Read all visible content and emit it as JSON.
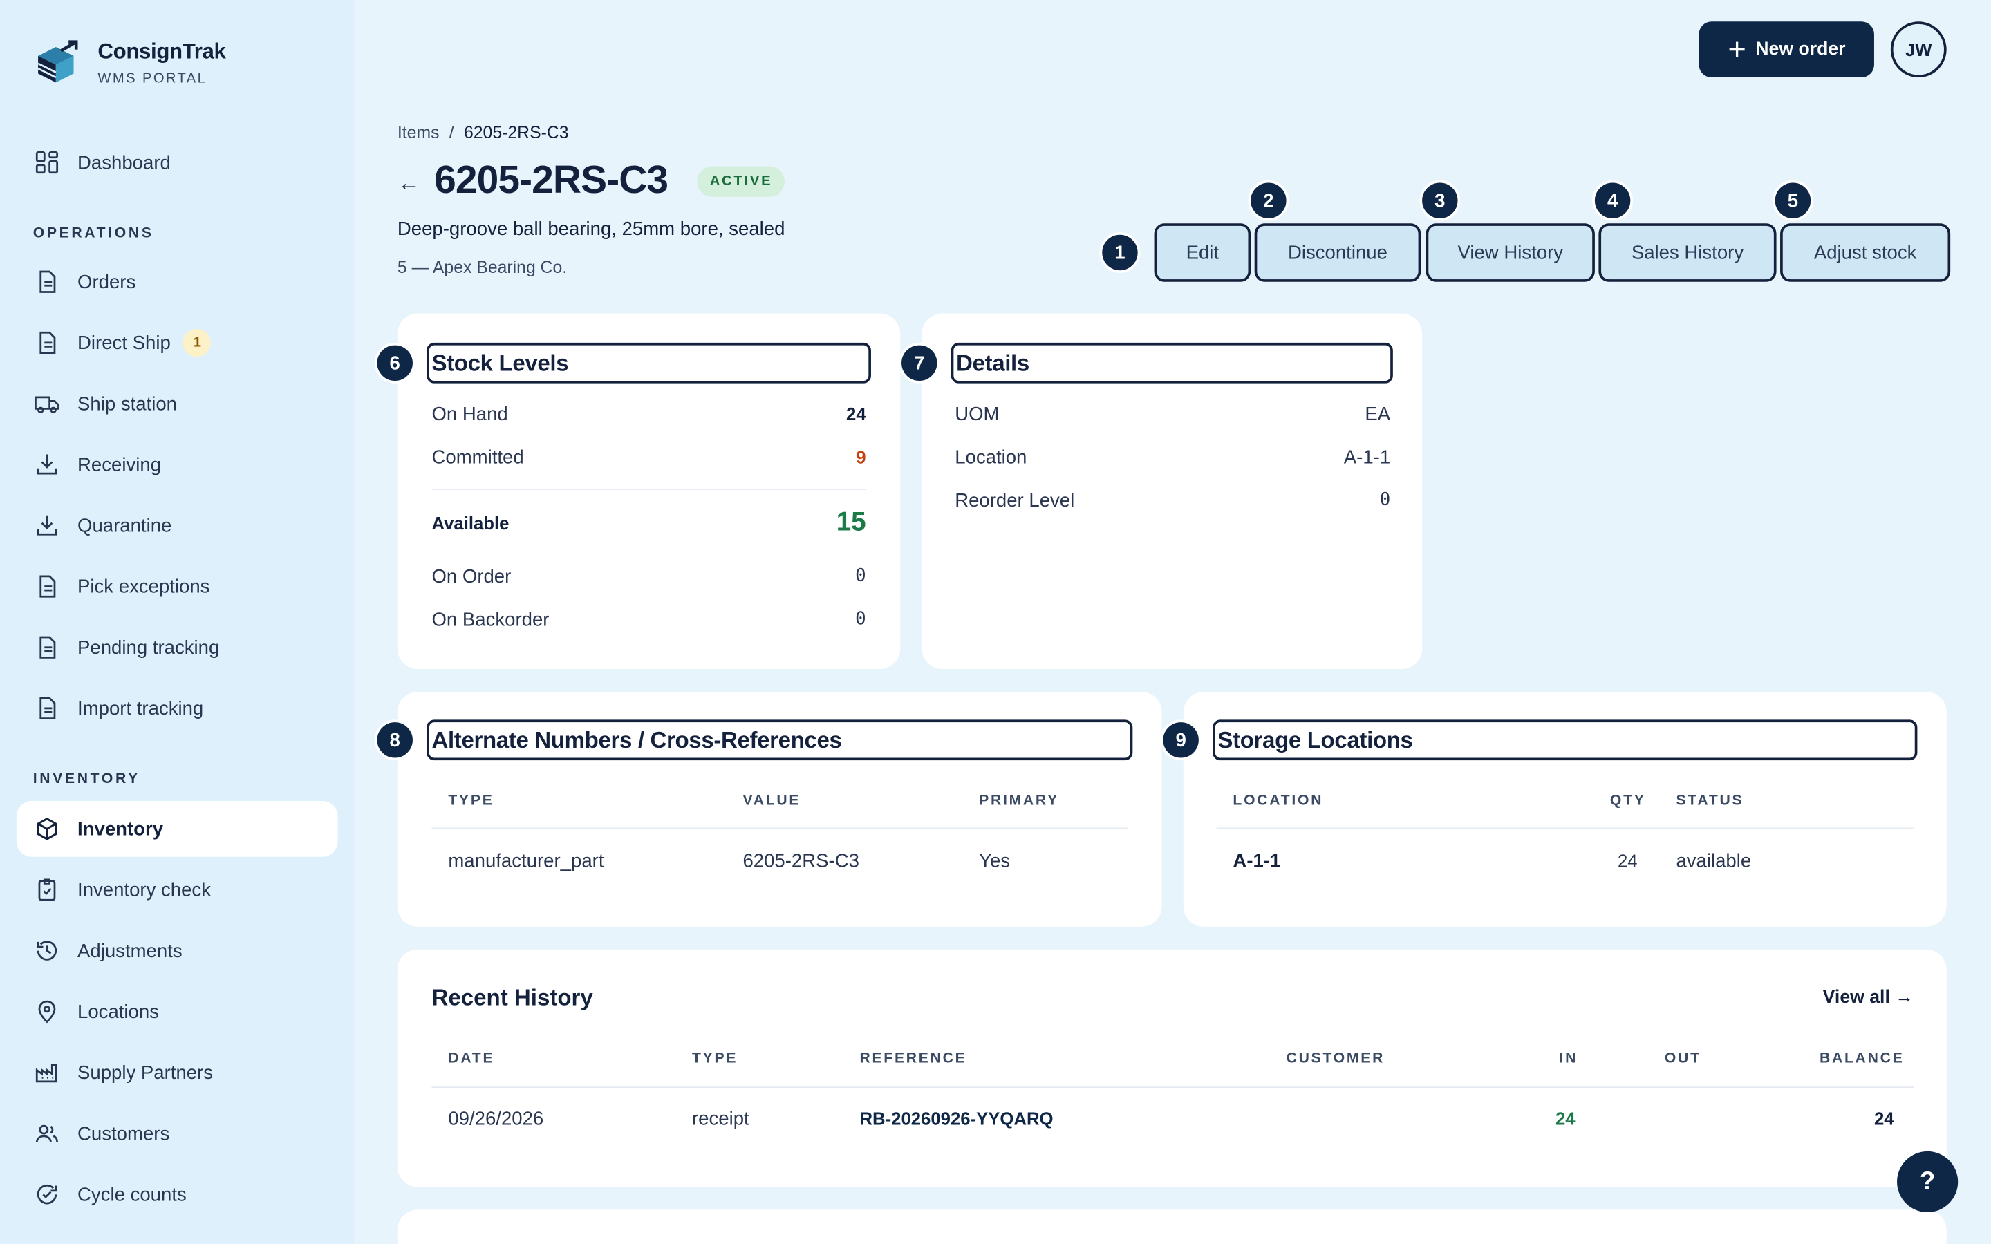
{
  "brand": {
    "name": "ConsignTrak",
    "subtitle": "WMS PORTAL"
  },
  "sidebar": {
    "top_item": {
      "label": "Dashboard",
      "icon": "grid-icon"
    },
    "sections": [
      {
        "heading": "OPERATIONS",
        "items": [
          {
            "label": "Orders",
            "icon": "document-icon"
          },
          {
            "label": "Direct Ship",
            "icon": "document-icon",
            "badge": "1"
          },
          {
            "label": "Ship station",
            "icon": "truck-icon"
          },
          {
            "label": "Receiving",
            "icon": "download-icon"
          },
          {
            "label": "Quarantine",
            "icon": "download-icon"
          },
          {
            "label": "Pick exceptions",
            "icon": "document-icon"
          },
          {
            "label": "Pending tracking",
            "icon": "document-icon"
          },
          {
            "label": "Import tracking",
            "icon": "document-icon"
          }
        ]
      },
      {
        "heading": "INVENTORY",
        "items": [
          {
            "label": "Inventory",
            "icon": "cube-icon",
            "active": true
          },
          {
            "label": "Inventory check",
            "icon": "clipboard-check-icon"
          },
          {
            "label": "Adjustments",
            "icon": "history-icon"
          },
          {
            "label": "Locations",
            "icon": "map-pin-icon"
          },
          {
            "label": "Supply Partners",
            "icon": "factory-icon"
          },
          {
            "label": "Customers",
            "icon": "users-icon"
          },
          {
            "label": "Cycle counts",
            "icon": "refresh-check-icon"
          }
        ]
      }
    ]
  },
  "header": {
    "new_order_label": "New order",
    "avatar_initials": "JW"
  },
  "breadcrumb": {
    "parent": "Items",
    "separator": "/",
    "current": "6205-2RS-C3"
  },
  "item": {
    "sku": "6205-2RS-C3",
    "status": "ACTIVE",
    "description": "Deep-groove ball bearing, 25mm bore, sealed",
    "vendor": "5 — Apex Bearing Co."
  },
  "actions": [
    {
      "label": "Edit",
      "marker": "1"
    },
    {
      "label": "Discontinue",
      "marker": "2"
    },
    {
      "label": "View History",
      "marker": "3"
    },
    {
      "label": "Sales History",
      "marker": "4"
    },
    {
      "label": "Adjust stock",
      "marker": "5"
    }
  ],
  "stock_levels": {
    "marker": "6",
    "title": "Stock Levels",
    "on_hand": {
      "label": "On Hand",
      "value": "24"
    },
    "committed": {
      "label": "Committed",
      "value": "9"
    },
    "available": {
      "label": "Available",
      "value": "15"
    },
    "on_order": {
      "label": "On Order",
      "value": "0"
    },
    "on_backorder": {
      "label": "On Backorder",
      "value": "0"
    }
  },
  "details": {
    "marker": "7",
    "title": "Details",
    "rows": [
      {
        "label": "UOM",
        "value": "EA"
      },
      {
        "label": "Location",
        "value": "A-1-1"
      },
      {
        "label": "Reorder Level",
        "value": "0"
      }
    ]
  },
  "alternates": {
    "marker": "8",
    "title": "Alternate Numbers / Cross-References",
    "columns": [
      "TYPE",
      "VALUE",
      "PRIMARY"
    ],
    "rows": [
      [
        "manufacturer_part",
        "6205-2RS-C3",
        "Yes"
      ]
    ]
  },
  "storage": {
    "marker": "9",
    "title": "Storage Locations",
    "columns": [
      "LOCATION",
      "QTY",
      "STATUS"
    ],
    "rows": [
      [
        "A-1-1",
        "24",
        "available"
      ]
    ]
  },
  "history": {
    "title": "Recent History",
    "view_all": "View all →",
    "columns": [
      "DATE",
      "TYPE",
      "REFERENCE",
      "CUSTOMER",
      "IN",
      "OUT",
      "BALANCE"
    ],
    "rows": [
      [
        "09/26/2026",
        "receipt",
        "RB-20260926-YYQARQ",
        "",
        "24",
        "",
        "24"
      ]
    ]
  },
  "help_label": "?",
  "colors": {
    "navy": "#0f2747",
    "available_green": "#1b7a48",
    "committed_orange": "#c2410c",
    "status_green_bg": "#d4f0dc"
  }
}
